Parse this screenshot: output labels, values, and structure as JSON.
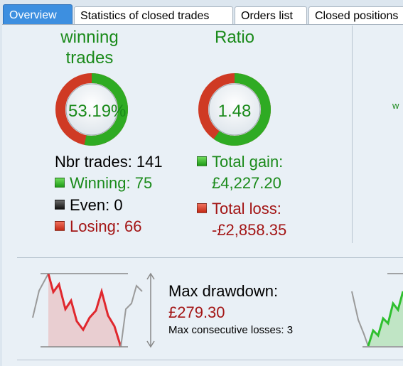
{
  "tabs": [
    {
      "label": "Overview",
      "active": true
    },
    {
      "label": "Statistics of closed trades",
      "active": false
    },
    {
      "label": "Orders list",
      "active": false
    },
    {
      "label": "Closed positions",
      "active": false
    }
  ],
  "winning": {
    "title_line1": "winning",
    "title_line2": "trades",
    "percent_label": "53.19%",
    "win_fraction": 0.5319
  },
  "ratio": {
    "title": "Ratio",
    "value": "1.48",
    "gain_fraction": 0.5967
  },
  "trades": {
    "total_label": "Nbr trades: 141",
    "winning_label": "Winning: 75",
    "even_label": "Even: 0",
    "losing_label": "Losing: 66"
  },
  "gainloss": {
    "gain_label": "Total gain:",
    "gain_value": "£4,227.20",
    "loss_label": "Total loss:",
    "loss_value": "-£2,858.35"
  },
  "drawdown": {
    "title": "Max drawdown:",
    "value": "£279.30",
    "consecutive_label": "Max consecutive losses: 3"
  },
  "right_panel": {
    "partial_text": "w"
  },
  "colors": {
    "green": "#1a8a1a",
    "red": "#a31515",
    "tab_active": "#3d8fe0",
    "panel_bg": "#e9f0f6"
  }
}
